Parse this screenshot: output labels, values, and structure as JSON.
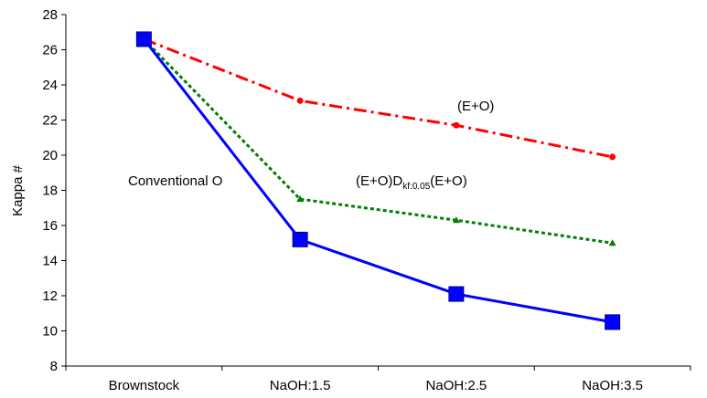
{
  "chart_data": {
    "type": "line",
    "title": "",
    "xlabel": "",
    "ylabel": "Kappa #",
    "categories": [
      "Brownstock",
      "NaOH:1.5",
      "NaOH:2.5",
      "NaOH:3.5"
    ],
    "ylim": [
      8,
      28
    ],
    "yticks": [
      8,
      10,
      12,
      14,
      16,
      18,
      20,
      22,
      24,
      26,
      28
    ],
    "grid": false,
    "legend": "none",
    "series": [
      {
        "key": "eo",
        "values": [
          26.6,
          23.1,
          21.7,
          19.9
        ],
        "color": "#ff0000",
        "line_style": "dash-dot",
        "marker": "circle"
      },
      {
        "key": "eo_d_eo",
        "values": [
          26.6,
          17.5,
          16.3,
          15.0
        ],
        "color": "#008000",
        "line_style": "dotted",
        "marker": "triangle"
      },
      {
        "key": "conventional",
        "values": [
          26.6,
          15.2,
          12.1,
          10.5
        ],
        "color": "#0000ff",
        "line_style": "solid",
        "marker": "square"
      }
    ],
    "annotations": {
      "eo": "(E+O)",
      "conventional": "Conventional O",
      "eo_d_eo_pre": "(E+O)D",
      "eo_d_eo_sub": "kf:0.05",
      "eo_d_eo_post": "(E+O)"
    }
  }
}
